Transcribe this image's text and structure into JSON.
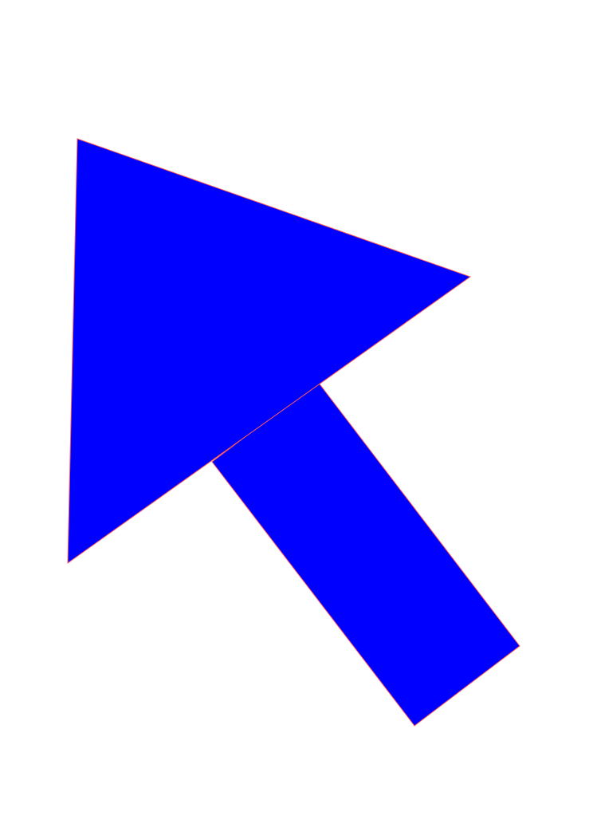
{
  "figure": {
    "subject": "arrow-pointing-up-left",
    "colors": {
      "background": "#ffffff",
      "fill": "#0000ff",
      "stroke": "#ff5a5a"
    }
  }
}
